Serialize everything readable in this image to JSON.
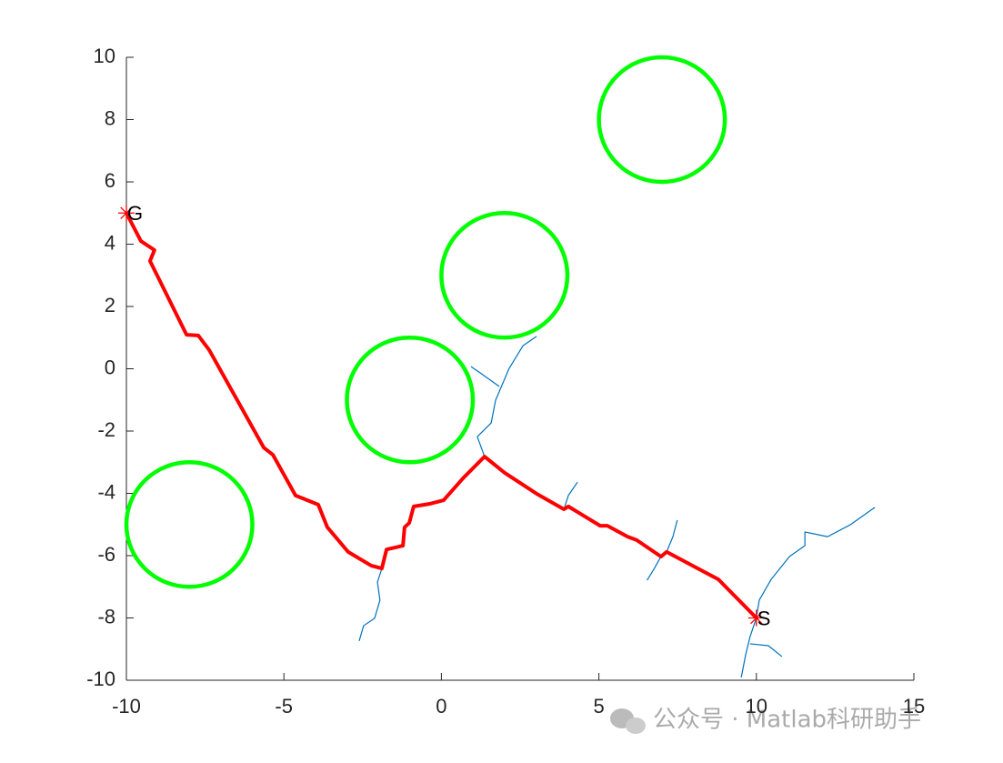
{
  "chart_data": {
    "type": "line",
    "xlim": [
      -10,
      15
    ],
    "ylim": [
      -10,
      10
    ],
    "xticks": [
      -10,
      -5,
      0,
      5,
      10,
      15
    ],
    "yticks": [
      -10,
      -8,
      -6,
      -4,
      -2,
      0,
      2,
      4,
      6,
      8,
      10
    ],
    "circles": [
      {
        "x": -8,
        "y": -5,
        "r": 2
      },
      {
        "x": -1,
        "y": -1,
        "r": 2
      },
      {
        "x": 2,
        "y": 3,
        "r": 2
      },
      {
        "x": 7,
        "y": 8,
        "r": 2
      }
    ],
    "circle_color": "#00ff00",
    "series": [
      {
        "color": "#0072bd",
        "width": 1.2,
        "x": [
          10,
          10.09,
          10.47,
          11.05,
          11.54,
          11.54,
          12.26,
          12.98,
          13.76
        ],
        "values": [
          -8,
          -7.43,
          -6.76,
          -6.03,
          -5.68,
          -5.24,
          -5.39,
          -5.01,
          -4.45
        ]
      },
      {
        "color": "#0072bd",
        "width": 1.2,
        "x": [
          10,
          9.8,
          9.66,
          9.52
        ],
        "values": [
          -8,
          -8.6,
          -9.18,
          -9.91
        ]
      },
      {
        "color": "#0072bd",
        "width": 1.2,
        "x": [
          9.8,
          10.38,
          10.81
        ],
        "values": [
          -8.83,
          -8.89,
          -9.24
        ]
      },
      {
        "color": "#0072bd",
        "width": 1.2,
        "x": [
          1.37,
          1.14,
          1.58,
          1.72,
          2.15,
          2.59,
          3.02
        ],
        "values": [
          -2.82,
          -2.18,
          -1.74,
          -1.01,
          0.01,
          0.74,
          1.04
        ]
      },
      {
        "color": "#0072bd",
        "width": 1.2,
        "x": [
          1.84,
          1.23,
          0.94
        ],
        "values": [
          -0.57,
          -0.13,
          0.07
        ]
      },
      {
        "color": "#0072bd",
        "width": 1.2,
        "x": [
          -1.89,
          -2.03,
          -1.95,
          -2.12,
          -2.47,
          -2.61
        ],
        "values": [
          -6.41,
          -6.85,
          -7.43,
          -8.01,
          -8.25,
          -8.74
        ]
      },
      {
        "color": "#0072bd",
        "width": 1.2,
        "x": [
          7.15,
          7.35,
          7.49
        ],
        "values": [
          -5.88,
          -5.39,
          -4.86
        ]
      },
      {
        "color": "#0072bd",
        "width": 1.2,
        "x": [
          6.97,
          6.76,
          6.53
        ],
        "values": [
          -6.03,
          -6.41,
          -6.79
        ]
      },
      {
        "color": "#0072bd",
        "width": 1.2,
        "x": [
          3.89,
          4.03,
          4.32
        ],
        "values": [
          -4.51,
          -4.07,
          -3.64
        ]
      },
      {
        "color": "#ff0000",
        "width": 4,
        "x": [
          10,
          8.79,
          7.15,
          6.97,
          6.2,
          5.91,
          5.27,
          5.04,
          4.03,
          3.89,
          3.02,
          2.01,
          1.37,
          0.71,
          0.07,
          -0.39,
          -0.88,
          -1.02,
          -1.17,
          -1.22,
          -1.74,
          -1.89,
          -2.23,
          -2.96,
          -3.62,
          -3.91,
          -4.63,
          -5.35,
          -5.64,
          -7.37,
          -7.72,
          -8.09,
          -9.25,
          -9.11,
          -9.54,
          -10
        ],
        "values": [
          -8,
          -6.76,
          -5.88,
          -6.03,
          -5.5,
          -5.39,
          -5.04,
          -5.04,
          -4.42,
          -4.51,
          -4.01,
          -3.34,
          -2.82,
          -3.49,
          -4.22,
          -4.34,
          -4.42,
          -4.95,
          -5.09,
          -5.68,
          -5.8,
          -6.41,
          -6.32,
          -5.88,
          -5.09,
          -4.36,
          -4.07,
          -2.76,
          -2.53,
          0.6,
          1.07,
          1.09,
          3.46,
          3.81,
          4.1,
          5
        ]
      }
    ],
    "points": [
      {
        "x": 10,
        "y": -8,
        "label": "S"
      },
      {
        "x": -10,
        "y": 5,
        "label": "G"
      }
    ],
    "point_color": "#ff0000"
  },
  "watermark": "公众号 · Matlab科研助手"
}
